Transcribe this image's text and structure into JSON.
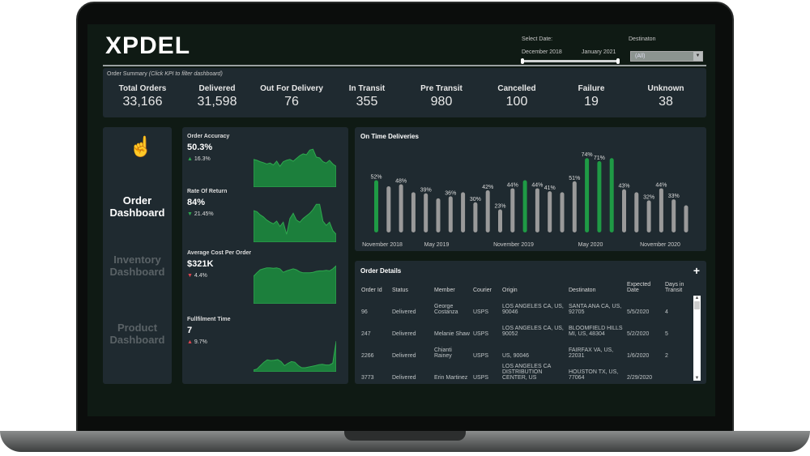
{
  "header": {
    "logo": "XPDEL",
    "select_date_label": "Select Date:",
    "date_start": "December 2018",
    "date_end": "January 2021",
    "destination_label": "Destinaton",
    "destination_value": "(All)"
  },
  "summary": {
    "title": "Order Summary",
    "hint": "(Click KPI to filter dashboard)",
    "kpis": [
      {
        "label": "Total Orders",
        "value": "33,166"
      },
      {
        "label": "Delivered",
        "value": "31,598"
      },
      {
        "label": "Out For Delivery",
        "value": "76"
      },
      {
        "label": "In Transit",
        "value": "355"
      },
      {
        "label": "Pre Transit",
        "value": "980"
      },
      {
        "label": "Cancelled",
        "value": "100"
      },
      {
        "label": "Failure",
        "value": "19"
      },
      {
        "label": "Unknown",
        "value": "38"
      }
    ]
  },
  "nav": {
    "items": [
      {
        "label": "Order Dashboard",
        "active": true
      },
      {
        "label": "Inventory Dashboard",
        "active": false
      },
      {
        "label": "Product Dashboard",
        "active": false
      }
    ]
  },
  "metrics": [
    {
      "title": "Order Accuracy",
      "value": "50.3%",
      "delta": "16.3%",
      "direction": "up",
      "good": true,
      "trend": [
        60,
        58,
        55,
        53,
        50,
        52,
        48,
        56,
        45,
        55,
        58,
        60,
        56,
        62,
        68,
        72,
        70,
        80,
        82,
        65,
        63,
        55,
        52,
        58,
        50,
        45
      ]
    },
    {
      "title": "Rate Of Return",
      "value": "84%",
      "delta": "21.45%",
      "direction": "down",
      "good": true,
      "trend": [
        60,
        58,
        52,
        48,
        42,
        38,
        35,
        40,
        30,
        38,
        15,
        45,
        55,
        42,
        38,
        45,
        50,
        55,
        62,
        72,
        72,
        40,
        32,
        38,
        22,
        15
      ]
    },
    {
      "title": "Average Cost Per Order",
      "value": "$321K",
      "delta": "4.4%",
      "direction": "down",
      "good": false,
      "trend": [
        55,
        62,
        68,
        70,
        72,
        72,
        71,
        72,
        70,
        63,
        66,
        68,
        70,
        68,
        64,
        62,
        62,
        62,
        63,
        65,
        66,
        66,
        67,
        66,
        70,
        76
      ]
    },
    {
      "title": "Fullfilment Time",
      "value": "7",
      "delta": "9.7%",
      "direction": "up",
      "good": false,
      "trend": [
        5,
        8,
        18,
        28,
        35,
        33,
        34,
        36,
        30,
        18,
        25,
        30,
        28,
        18,
        12,
        12,
        14,
        16,
        18,
        21,
        22,
        20,
        20,
        25,
        90
      ]
    }
  ],
  "chart_data": {
    "type": "bar",
    "title": "On Time Deliveries",
    "xlabel": "",
    "ylabel": "",
    "ylim": [
      0,
      80
    ],
    "tick_labels": [
      "November 2018",
      "May 2019",
      "November 2019",
      "May 2020",
      "November 2020"
    ],
    "values": [
      52,
      46,
      48,
      40,
      39,
      34,
      36,
      40,
      30,
      42,
      23,
      44,
      52,
      44,
      41,
      40,
      51,
      74,
      71,
      74,
      43,
      40,
      32,
      44,
      33,
      27
    ],
    "labeled": [
      true,
      false,
      true,
      false,
      true,
      false,
      true,
      false,
      true,
      true,
      true,
      true,
      false,
      true,
      true,
      false,
      true,
      true,
      true,
      false,
      true,
      false,
      true,
      true,
      true,
      false
    ],
    "highlight": [
      true,
      false,
      false,
      false,
      false,
      false,
      false,
      false,
      false,
      false,
      false,
      false,
      true,
      false,
      false,
      false,
      false,
      true,
      true,
      true,
      false,
      false,
      false,
      false,
      false,
      false
    ],
    "colors": {
      "highlight": "#1f9a45",
      "normal": "#9a9a9a"
    }
  },
  "orders": {
    "title": "Order Details",
    "add_icon": "plus-icon",
    "columns": [
      "Order Id",
      "Status",
      "Member",
      "Courier",
      "Origin",
      "Destinaton",
      "Expected Date",
      "Days in Transit"
    ],
    "rows": [
      [
        "96",
        "Delivered",
        "George Costanza",
        "USPS",
        "LOS ANGELES CA, US, 90046",
        "SANTA ANA CA, US, 92705",
        "5/5/2020",
        "4"
      ],
      [
        "247",
        "Delivered",
        "Melanie Shaw",
        "USPS",
        "LOS ANGELES CA, US, 90052",
        "BLOOMFIELD HILLS MI, US, 48304",
        "5/2/2020",
        "5"
      ],
      [
        "2266",
        "Delivered",
        "Chianti Rainey",
        "USPS",
        "US, 90046",
        "FAIRFAX VA, US, 22031",
        "1/6/2020",
        "2"
      ],
      [
        "3773",
        "Delivered",
        "Erin Martinez",
        "USPS",
        "LOS ANGELES CA DISTRIBUTION CENTER, US",
        "HOUSTON TX, US, 77064",
        "2/29/2020",
        ""
      ]
    ]
  }
}
